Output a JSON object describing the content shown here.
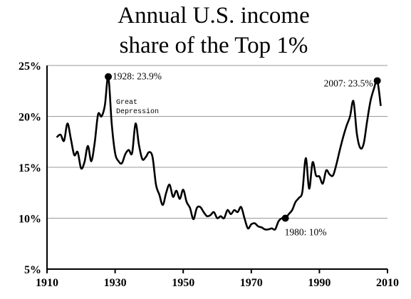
{
  "chart_data": {
    "type": "line",
    "title_line1": "Annual U.S. income",
    "title_line2": "share of the Top 1%",
    "xlabel": "",
    "ylabel": "",
    "xlim": [
      1910,
      2010
    ],
    "ylim": [
      5,
      25
    ],
    "x_ticks": [
      "1910",
      "1930",
      "1950",
      "1970",
      "1990",
      "2010"
    ],
    "y_ticks": [
      "5%",
      "10%",
      "15%",
      "20%",
      "25%"
    ],
    "grid": true,
    "series": [
      {
        "x": [
          1913,
          1914,
          1915,
          1916,
          1917,
          1918,
          1919,
          1920,
          1921,
          1922,
          1923,
          1924,
          1925,
          1926,
          1927,
          1928,
          1929,
          1930,
          1931,
          1932,
          1933,
          1934,
          1935,
          1936,
          1937,
          1938,
          1939,
          1940,
          1941,
          1942,
          1943,
          1944,
          1945,
          1946,
          1947,
          1948,
          1949,
          1950,
          1951,
          1952,
          1953,
          1954,
          1955,
          1956,
          1957,
          1958,
          1959,
          1960,
          1961,
          1962,
          1963,
          1964,
          1965,
          1966,
          1967,
          1968,
          1969,
          1970,
          1971,
          1972,
          1973,
          1974,
          1975,
          1976,
          1977,
          1978,
          1979,
          1980,
          1981,
          1982,
          1983,
          1984,
          1985,
          1986,
          1987,
          1988,
          1989,
          1990,
          1991,
          1992,
          1993,
          1994,
          1995,
          1996,
          1997,
          1998,
          1999,
          2000,
          2001,
          2002,
          2003,
          2004,
          2005,
          2006,
          2007,
          2008
        ],
        "values": [
          18.0,
          18.2,
          17.6,
          19.3,
          17.8,
          16.2,
          16.5,
          14.9,
          15.5,
          17.1,
          15.6,
          17.4,
          20.2,
          20.0,
          21.1,
          23.9,
          19.3,
          16.4,
          15.6,
          15.4,
          16.3,
          16.7,
          16.4,
          19.3,
          17.2,
          15.8,
          16.0,
          16.5,
          16.0,
          13.3,
          12.3,
          11.3,
          12.5,
          13.3,
          12.1,
          12.7,
          11.9,
          12.8,
          11.6,
          11.0,
          9.9,
          11.0,
          11.1,
          10.6,
          10.2,
          10.3,
          10.6,
          10.0,
          10.2,
          10.0,
          10.8,
          10.4,
          10.8,
          10.6,
          11.1,
          10.0,
          9.0,
          9.4,
          9.5,
          9.2,
          9.1,
          8.9,
          8.9,
          9.0,
          8.9,
          9.7,
          10.0,
          10.0,
          10.4,
          10.8,
          11.6,
          12.0,
          12.6,
          15.9,
          12.9,
          15.5,
          14.2,
          14.1,
          13.4,
          14.7,
          14.3,
          14.2,
          15.3,
          16.7,
          18.0,
          19.1,
          20.0,
          21.5,
          18.3,
          16.9,
          17.3,
          19.5,
          21.5,
          22.7,
          23.5,
          21.1
        ]
      }
    ],
    "annotations": [
      {
        "label": "1928: 23.9%",
        "x": 1928,
        "y": 23.9
      },
      {
        "label": "2007: 23.5%",
        "x": 2007,
        "y": 23.5
      },
      {
        "label": "1980: 10%",
        "x": 1980,
        "y": 10.0
      }
    ],
    "note_line1": "Great",
    "note_line2": "Depression"
  }
}
